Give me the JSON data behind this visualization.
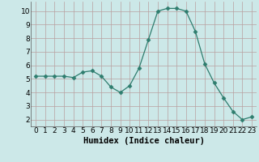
{
  "x": [
    0,
    1,
    2,
    3,
    4,
    5,
    6,
    7,
    8,
    9,
    10,
    11,
    12,
    13,
    14,
    15,
    16,
    17,
    18,
    19,
    20,
    21,
    22,
    23
  ],
  "y": [
    5.2,
    5.2,
    5.2,
    5.2,
    5.1,
    5.5,
    5.6,
    5.2,
    4.4,
    4.0,
    4.5,
    5.8,
    7.9,
    10.0,
    10.2,
    10.2,
    10.0,
    8.5,
    6.1,
    4.7,
    3.6,
    2.6,
    2.0,
    2.2
  ],
  "line_color": "#2e7d6e",
  "marker": "D",
  "marker_size": 2.5,
  "background_color": "#cce8e8",
  "grid_color": "#b8a0a0",
  "xlabel": "Humidex (Indice chaleur)",
  "xlim": [
    -0.5,
    23.5
  ],
  "ylim": [
    1.5,
    10.7
  ],
  "yticks": [
    2,
    3,
    4,
    5,
    6,
    7,
    8,
    9,
    10
  ],
  "xticks": [
    0,
    1,
    2,
    3,
    4,
    5,
    6,
    7,
    8,
    9,
    10,
    11,
    12,
    13,
    14,
    15,
    16,
    17,
    18,
    19,
    20,
    21,
    22,
    23
  ],
  "xlabel_fontsize": 7.5,
  "tick_fontsize": 6.5
}
